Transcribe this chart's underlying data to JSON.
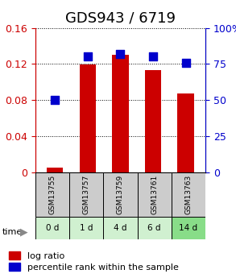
{
  "title": "GDS943 / 6719",
  "categories": [
    "GSM13755",
    "GSM13757",
    "GSM13759",
    "GSM13761",
    "GSM13763"
  ],
  "time_labels": [
    "0 d",
    "1 d",
    "4 d",
    "6 d",
    "14 d"
  ],
  "log_ratio": [
    0.005,
    0.119,
    0.13,
    0.113,
    0.087
  ],
  "percentile_rank": [
    50,
    80,
    82,
    80,
    76
  ],
  "ylim_left": [
    0,
    0.16
  ],
  "ylim_right": [
    0,
    100
  ],
  "yticks_left": [
    0,
    0.04,
    0.08,
    0.12,
    0.16
  ],
  "yticks_right": [
    0,
    25,
    50,
    75,
    100
  ],
  "ytick_labels_left": [
    "0",
    "0.04",
    "0.08",
    "0.12",
    "0.16"
  ],
  "ytick_labels_right": [
    "0",
    "25",
    "50",
    "75",
    "100%"
  ],
  "bar_color": "#cc0000",
  "dot_color": "#0000cc",
  "left_axis_color": "#cc0000",
  "right_axis_color": "#0000cc",
  "grid_color": "#000000",
  "title_fontsize": 13,
  "tick_fontsize": 9,
  "legend_fontsize": 8,
  "time_label_color": "#88cc88",
  "gsm_label_color": "#cccccc",
  "green_shades": [
    "#e8f5e9",
    "#c8e6c9",
    "#a5d6a7",
    "#81c784",
    "#4caf50"
  ],
  "time_row_colors": [
    "#d0f0d0",
    "#d0f0d0",
    "#d0f0d0",
    "#d0f0d0",
    "#88dd88"
  ]
}
